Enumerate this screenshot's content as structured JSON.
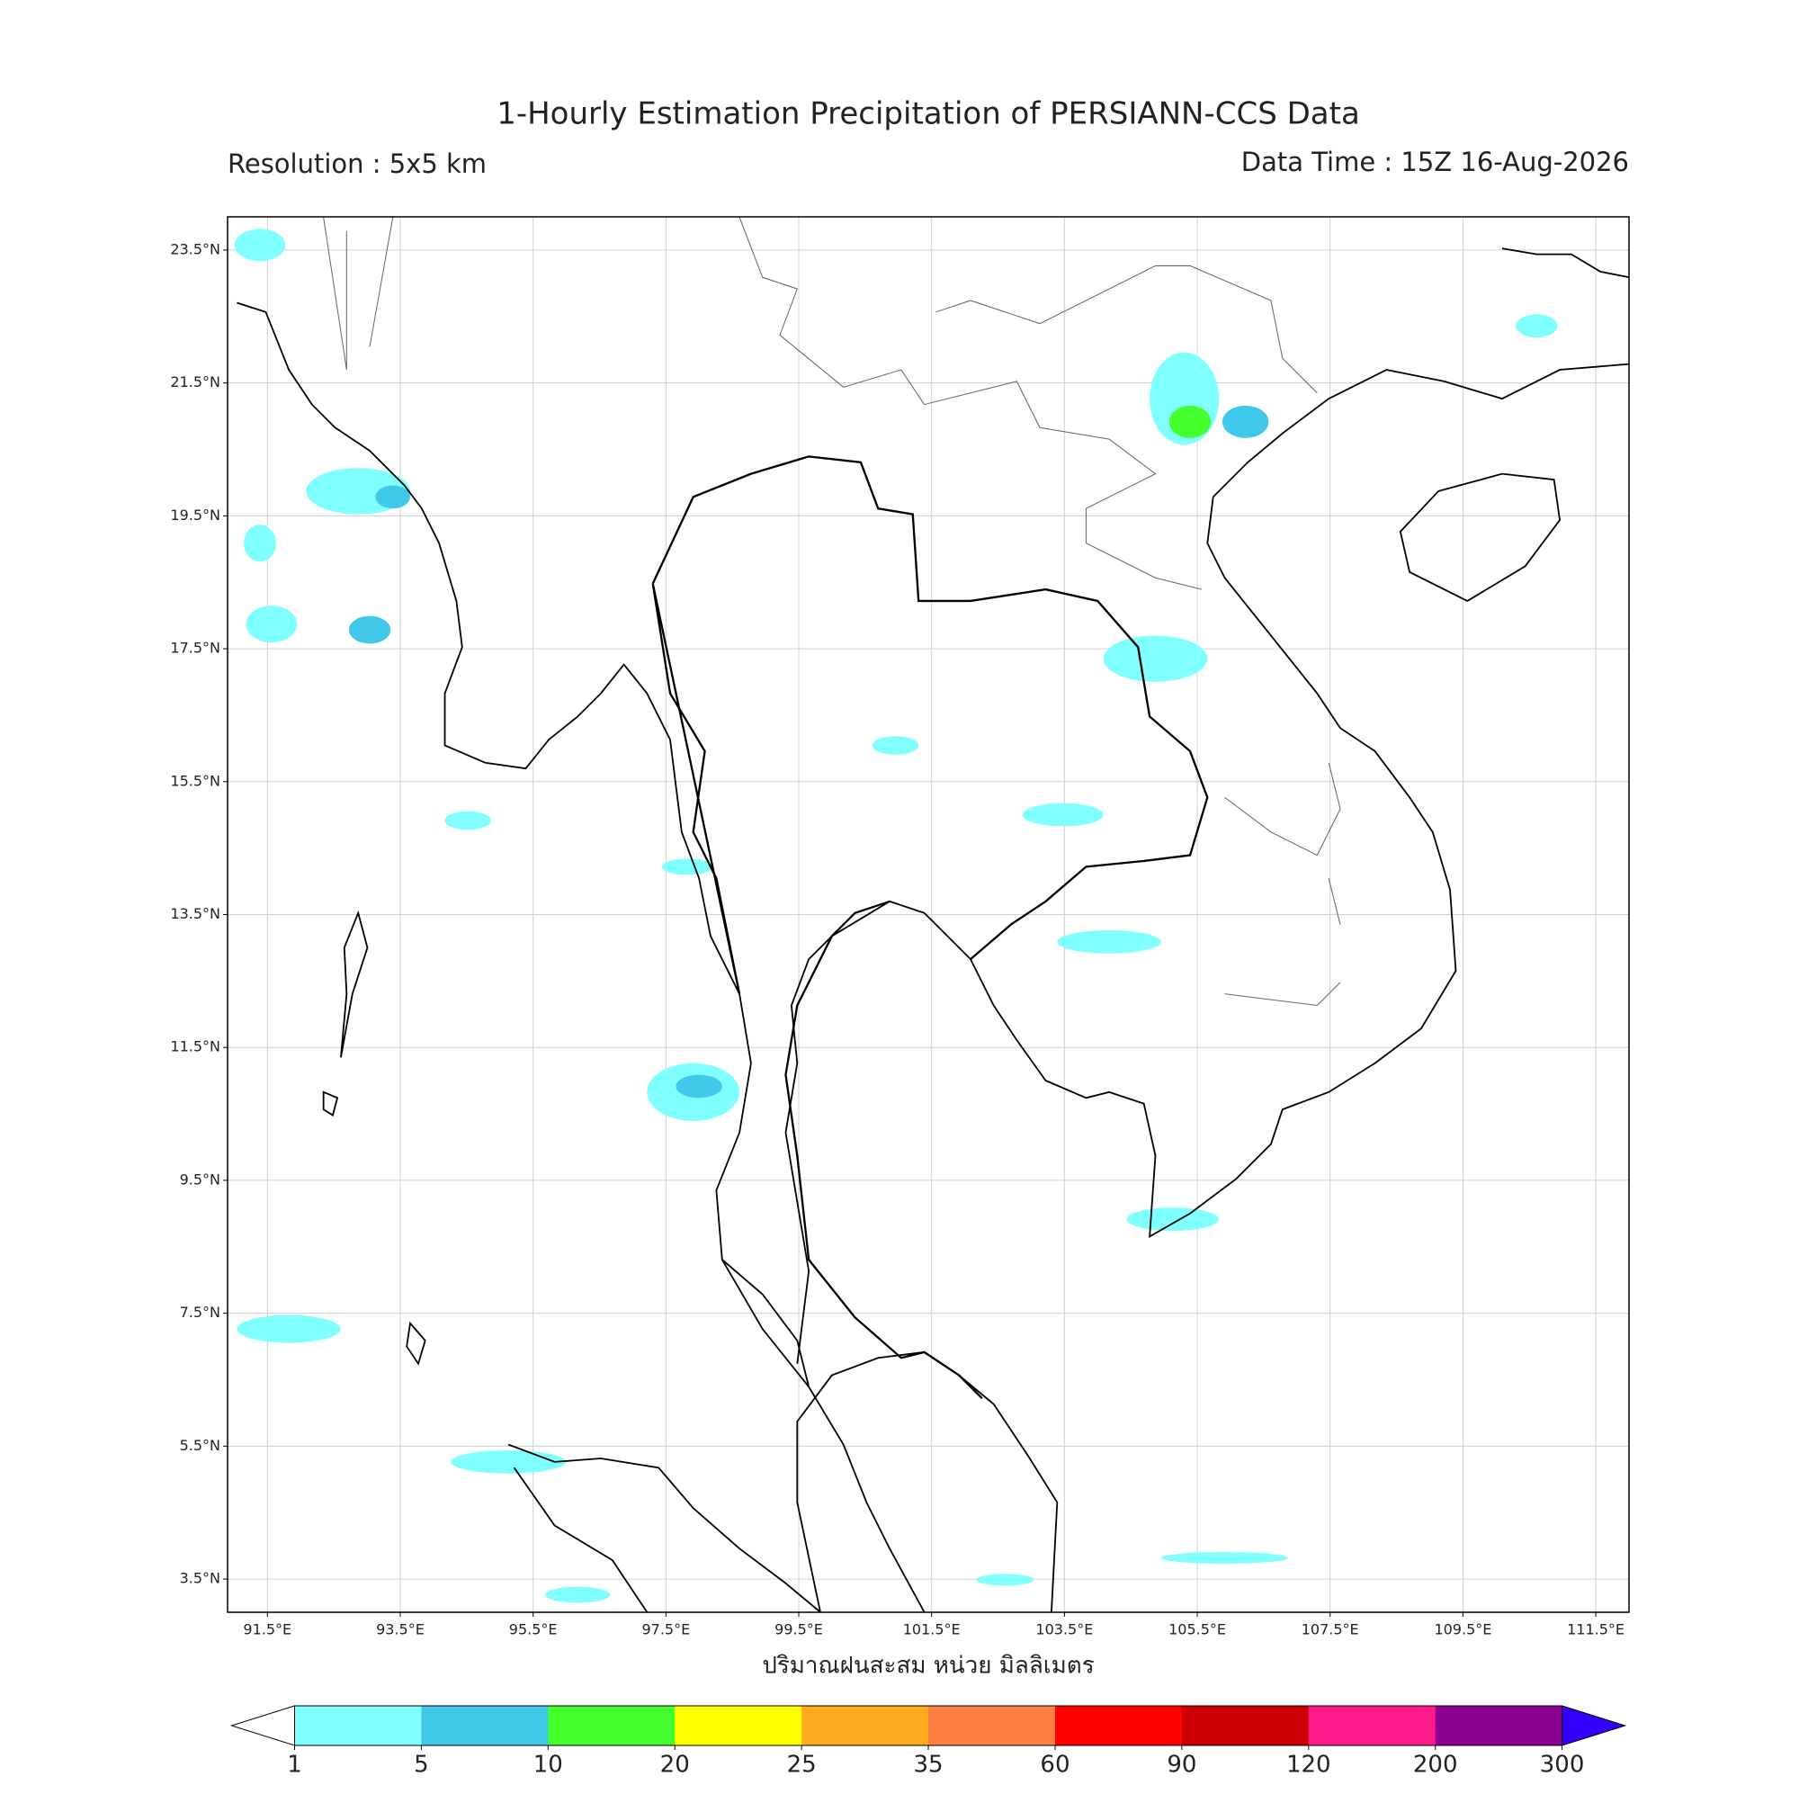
{
  "header": {
    "title": "1-Hourly Estimation Precipitation of PERSIANN-CCS Data",
    "resolution": "Resolution : 5x5 km",
    "data_time": "Data Time : 15Z 16-Aug-2026"
  },
  "map": {
    "xlim": [
      90.9,
      112.0
    ],
    "ylim": [
      3.0,
      24.0
    ],
    "grid": true,
    "xlabel": "ปริมาณฝนสะสม หน่วย มิลลิเมตร",
    "xticks": [
      {
        "value": 91.5,
        "label": "91.5°E"
      },
      {
        "value": 93.5,
        "label": "93.5°E"
      },
      {
        "value": 95.5,
        "label": "95.5°E"
      },
      {
        "value": 97.5,
        "label": "97.5°E"
      },
      {
        "value": 99.5,
        "label": "99.5°E"
      },
      {
        "value": 101.5,
        "label": "101.5°E"
      },
      {
        "value": 103.5,
        "label": "103.5°E"
      },
      {
        "value": 105.5,
        "label": "105.5°E"
      },
      {
        "value": 107.5,
        "label": "107.5°E"
      },
      {
        "value": 109.5,
        "label": "109.5°E"
      },
      {
        "value": 111.5,
        "label": "111.5°E"
      }
    ],
    "yticks": [
      {
        "value": 23.5,
        "label": "23.5°N"
      },
      {
        "value": 21.5,
        "label": "21.5°N"
      },
      {
        "value": 19.5,
        "label": "19.5°N"
      },
      {
        "value": 17.5,
        "label": "17.5°N"
      },
      {
        "value": 15.5,
        "label": "15.5°N"
      },
      {
        "value": 13.5,
        "label": "13.5°N"
      },
      {
        "value": 11.5,
        "label": "11.5°N"
      },
      {
        "value": 9.5,
        "label": "9.5°N"
      },
      {
        "value": 7.5,
        "label": "7.5°N"
      },
      {
        "value": 5.5,
        "label": "5.5°N"
      },
      {
        "value": 3.5,
        "label": "3.5°N"
      }
    ]
  },
  "colorbar": {
    "levels": [
      1,
      5,
      10,
      20,
      25,
      35,
      60,
      90,
      120,
      200,
      300
    ],
    "colors": [
      "#80ffff",
      "#40c8ea",
      "#44ff2c",
      "#ffff00",
      "#ffaa20",
      "#ff8040",
      "#ff0000",
      "#cc0000",
      "#ff1a8c",
      "#8c0090"
    ],
    "under_color": "#ffffff",
    "over_color": "#3300ff"
  }
}
